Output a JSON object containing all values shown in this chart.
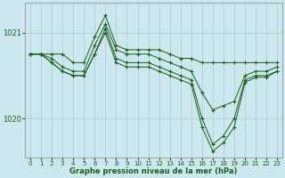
{
  "background_color": "#cce8ee",
  "grid_color": "#aacccc",
  "line_color": "#1a5c1a",
  "xlabel": "Graphe pression niveau de la mer (hPa)",
  "xlim": [
    -0.5,
    23.5
  ],
  "ylim": [
    1019.55,
    1021.35
  ],
  "yticks": [
    1020,
    1021
  ],
  "xticks": [
    0,
    1,
    2,
    3,
    4,
    5,
    6,
    7,
    8,
    9,
    10,
    11,
    12,
    13,
    14,
    15,
    16,
    17,
    18,
    19,
    20,
    21,
    22,
    23
  ],
  "series": [
    {
      "x": [
        0,
        1,
        2,
        3,
        4,
        5,
        6,
        7,
        8,
        9,
        10,
        11,
        12,
        13,
        14,
        15,
        16,
        17,
        18,
        19,
        20,
        21,
        22,
        23
      ],
      "y": [
        1020.75,
        1020.75,
        1020.75,
        1020.75,
        1020.65,
        1020.65,
        1020.95,
        1021.2,
        1020.85,
        1020.8,
        1020.8,
        1020.8,
        1020.8,
        1020.75,
        1020.7,
        1020.7,
        1020.65,
        1020.65,
        1020.65,
        1020.65,
        1020.65,
        1020.65,
        1020.65,
        1020.65
      ]
    },
    {
      "x": [
        0,
        1,
        2,
        3,
        4,
        5,
        6,
        7,
        8,
        9,
        10,
        11,
        12,
        13,
        14,
        15,
        16,
        17,
        18,
        19,
        20,
        21,
        22,
        23
      ],
      "y": [
        1020.75,
        1020.75,
        1020.7,
        1020.6,
        1020.55,
        1020.55,
        1020.85,
        1021.1,
        1020.8,
        1020.75,
        1020.75,
        1020.75,
        1020.7,
        1020.65,
        1020.6,
        1020.55,
        1020.3,
        1020.1,
        1020.15,
        1020.2,
        1020.5,
        1020.55,
        1020.55,
        1020.6
      ]
    },
    {
      "x": [
        0,
        1,
        2,
        3,
        4,
        5,
        6,
        7,
        8,
        9,
        10,
        11,
        12,
        13,
        14,
        15,
        16,
        17,
        18,
        19,
        20,
        21,
        22,
        23
      ],
      "y": [
        1020.75,
        1020.75,
        1020.65,
        1020.55,
        1020.5,
        1020.5,
        1020.75,
        1021.05,
        1020.7,
        1020.65,
        1020.65,
        1020.65,
        1020.6,
        1020.55,
        1020.5,
        1020.45,
        1020.0,
        1019.7,
        1019.8,
        1020.0,
        1020.45,
        1020.5,
        1020.5,
        1020.55
      ]
    },
    {
      "x": [
        0,
        1,
        2,
        3,
        4,
        5,
        6,
        7,
        8,
        9,
        10,
        11,
        12,
        13,
        14,
        15,
        16,
        17,
        18,
        19,
        20,
        21,
        22,
        23
      ],
      "y": [
        1020.75,
        1020.75,
        1020.65,
        1020.55,
        1020.5,
        1020.5,
        1020.75,
        1021.0,
        1020.65,
        1020.6,
        1020.6,
        1020.6,
        1020.55,
        1020.5,
        1020.45,
        1020.4,
        1019.9,
        1019.62,
        1019.72,
        1019.9,
        1020.42,
        1020.48,
        1020.48,
        1020.55
      ]
    }
  ]
}
